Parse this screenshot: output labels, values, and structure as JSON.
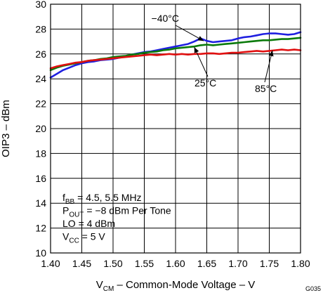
{
  "figure_id": "G035",
  "chart_data": {
    "type": "line",
    "title": "",
    "ylabel": "OIP3 – dBm",
    "xlabel": {
      "main": "V",
      "sub": "CM",
      "rest": " – Common-Mode Voltage – V"
    },
    "xlim": [
      1.4,
      1.8
    ],
    "ylim": [
      10,
      30
    ],
    "x_ticks": [
      "1.40",
      "1.45",
      "1.50",
      "1.55",
      "1.60",
      "1.65",
      "1.70",
      "1.75",
      "1.80"
    ],
    "y_ticks": [
      "10",
      "12",
      "14",
      "16",
      "18",
      "20",
      "22",
      "24",
      "26",
      "28",
      "30"
    ],
    "grid": true,
    "series": [
      {
        "name": "−40°C",
        "color": "#1f1fe0",
        "x": [
          1.4,
          1.41,
          1.42,
          1.43,
          1.44,
          1.45,
          1.46,
          1.47,
          1.48,
          1.49,
          1.5,
          1.51,
          1.52,
          1.53,
          1.54,
          1.55,
          1.56,
          1.57,
          1.58,
          1.59,
          1.6,
          1.61,
          1.62,
          1.63,
          1.64,
          1.65,
          1.66,
          1.67,
          1.68,
          1.69,
          1.7,
          1.71,
          1.72,
          1.73,
          1.74,
          1.75,
          1.76,
          1.77,
          1.78,
          1.79,
          1.8
        ],
        "y": [
          24.1,
          24.4,
          24.7,
          24.9,
          25.1,
          25.25,
          25.35,
          25.4,
          25.5,
          25.55,
          25.6,
          25.7,
          25.8,
          25.95,
          26.05,
          26.15,
          26.2,
          26.3,
          26.4,
          26.5,
          26.6,
          26.7,
          26.8,
          27.0,
          27.25,
          27.05,
          26.95,
          27.0,
          27.05,
          27.1,
          27.25,
          27.35,
          27.4,
          27.5,
          27.6,
          27.65,
          27.65,
          27.6,
          27.55,
          27.6,
          27.75
        ]
      },
      {
        "name": "25°C",
        "color": "#0a7a0a",
        "x": [
          1.4,
          1.41,
          1.42,
          1.43,
          1.44,
          1.45,
          1.46,
          1.47,
          1.48,
          1.49,
          1.5,
          1.51,
          1.52,
          1.53,
          1.54,
          1.55,
          1.56,
          1.57,
          1.58,
          1.59,
          1.6,
          1.61,
          1.62,
          1.63,
          1.64,
          1.65,
          1.66,
          1.67,
          1.68,
          1.69,
          1.7,
          1.71,
          1.72,
          1.73,
          1.74,
          1.75,
          1.76,
          1.77,
          1.78,
          1.79,
          1.8
        ],
        "y": [
          24.7,
          24.9,
          25.05,
          25.15,
          25.25,
          25.35,
          25.45,
          25.5,
          25.6,
          25.65,
          25.75,
          25.8,
          25.85,
          25.95,
          26.0,
          26.1,
          26.15,
          26.2,
          26.3,
          26.35,
          26.45,
          26.5,
          26.55,
          26.6,
          26.7,
          26.75,
          26.7,
          26.75,
          26.8,
          26.85,
          26.9,
          26.95,
          27.0,
          27.05,
          27.1,
          27.1,
          27.15,
          27.2,
          27.2,
          27.25,
          27.3
        ]
      },
      {
        "name": "85°C",
        "color": "#e01010",
        "x": [
          1.4,
          1.41,
          1.42,
          1.43,
          1.44,
          1.45,
          1.46,
          1.47,
          1.48,
          1.49,
          1.5,
          1.51,
          1.52,
          1.53,
          1.54,
          1.55,
          1.56,
          1.57,
          1.58,
          1.59,
          1.6,
          1.61,
          1.62,
          1.63,
          1.64,
          1.65,
          1.66,
          1.67,
          1.68,
          1.69,
          1.7,
          1.71,
          1.72,
          1.73,
          1.74,
          1.75,
          1.76,
          1.77,
          1.78,
          1.79,
          1.8
        ],
        "y": [
          24.85,
          25.0,
          25.1,
          25.2,
          25.3,
          25.35,
          25.45,
          25.5,
          25.55,
          25.6,
          25.65,
          25.7,
          25.75,
          25.8,
          25.85,
          25.9,
          25.95,
          25.9,
          25.95,
          26.0,
          25.95,
          26.0,
          25.95,
          26.0,
          26.0,
          26.05,
          26.05,
          26.0,
          26.05,
          26.1,
          26.1,
          26.15,
          26.2,
          26.25,
          26.2,
          26.25,
          26.3,
          26.35,
          26.3,
          26.35,
          26.3
        ]
      }
    ],
    "series_labels": [
      {
        "text": "−40°C",
        "series": 0
      },
      {
        "text": "25°C",
        "series": 1
      },
      {
        "text": "85°C",
        "series": 2
      }
    ],
    "annotations": [
      {
        "main": "f",
        "sub": "BB",
        "rest": " = 4.5, 5.5 MHz"
      },
      {
        "main": "P",
        "sub": "OUT",
        "rest": " = −8 dBm Per Tone"
      },
      {
        "main": "LO = 4 dBm",
        "sub": "",
        "rest": ""
      },
      {
        "main": "V",
        "sub": "CC",
        "rest": " =  5 V"
      }
    ]
  }
}
